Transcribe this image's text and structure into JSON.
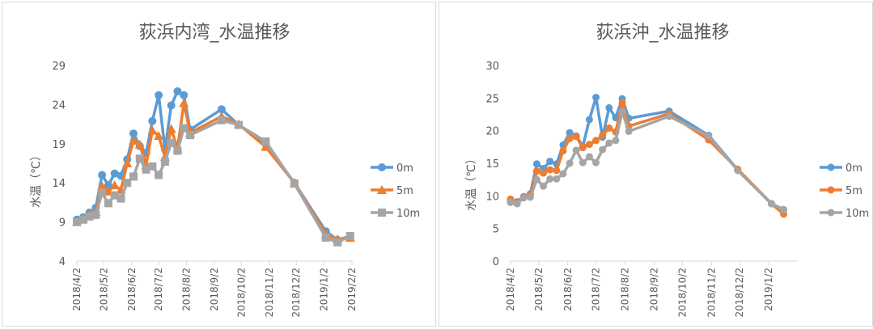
{
  "colors": {
    "s0m": "#5b9bd5",
    "s5m": "#ed7d31",
    "s10m": "#a5a5a5"
  },
  "chart_data": [
    {
      "type": "line",
      "title": "荻浜内湾_水温推移",
      "ylabel": "水温（℃）",
      "xlabel": "",
      "ylim": [
        4,
        29
      ],
      "yticks": [
        "4",
        "9",
        "14",
        "19",
        "24",
        "29"
      ],
      "xlim": [
        "2018-04-02",
        "2019-02-02"
      ],
      "xticks": [
        "2018/4/2",
        "2018/5/2",
        "2018/6/2",
        "2018/7/2",
        "2018/8/2",
        "2018/9/2",
        "2018/10/2",
        "2018/11/2",
        "2018/12/2",
        "2019/1/2",
        "2019/2/2"
      ],
      "legend": "right",
      "series": [
        {
          "name": "0m",
          "color_key": "s0m",
          "marker": "circle",
          "points": [
            [
              "2018-04-02",
              9.3
            ],
            [
              "2018-04-09",
              9.6
            ],
            [
              "2018-04-16",
              10.2
            ],
            [
              "2018-04-23",
              10.8
            ],
            [
              "2018-04-30",
              15.0
            ],
            [
              "2018-05-07",
              13.7
            ],
            [
              "2018-05-14",
              15.2
            ],
            [
              "2018-05-21",
              14.9
            ],
            [
              "2018-05-28",
              17.0
            ],
            [
              "2018-06-04",
              20.3
            ],
            [
              "2018-06-11",
              18.7
            ],
            [
              "2018-06-18",
              17.8
            ],
            [
              "2018-06-25",
              21.9
            ],
            [
              "2018-07-02",
              25.2
            ],
            [
              "2018-07-09",
              18.3
            ],
            [
              "2018-07-16",
              23.9
            ],
            [
              "2018-07-23",
              25.7
            ],
            [
              "2018-07-30",
              25.2
            ],
            [
              "2018-08-06",
              20.8
            ],
            [
              "2018-09-10",
              23.4
            ],
            [
              "2018-09-29",
              21.4
            ],
            [
              "2018-10-29",
              19.0
            ],
            [
              "2018-11-30",
              14.0
            ],
            [
              "2019-01-04",
              7.8
            ],
            [
              "2019-01-17",
              6.7
            ],
            [
              "2019-01-31",
              7.2
            ]
          ]
        },
        {
          "name": "5m",
          "color_key": "s5m",
          "marker": "triangle",
          "points": [
            [
              "2018-04-02",
              9.0
            ],
            [
              "2018-04-09",
              9.4
            ],
            [
              "2018-04-16",
              10.0
            ],
            [
              "2018-04-23",
              10.3
            ],
            [
              "2018-04-30",
              13.6
            ],
            [
              "2018-05-07",
              12.9
            ],
            [
              "2018-05-14",
              13.7
            ],
            [
              "2018-05-21",
              13.1
            ],
            [
              "2018-05-28",
              16.5
            ],
            [
              "2018-06-04",
              19.4
            ],
            [
              "2018-06-11",
              18.9
            ],
            [
              "2018-06-18",
              16.3
            ],
            [
              "2018-06-25",
              20.7
            ],
            [
              "2018-07-02",
              20.0
            ],
            [
              "2018-07-09",
              17.3
            ],
            [
              "2018-07-16",
              20.9
            ],
            [
              "2018-07-23",
              18.4
            ],
            [
              "2018-07-30",
              24.2
            ],
            [
              "2018-08-06",
              20.4
            ],
            [
              "2018-09-10",
              22.5
            ],
            [
              "2018-09-29",
              21.5
            ],
            [
              "2018-10-29",
              18.6
            ],
            [
              "2018-11-30",
              14.0
            ],
            [
              "2019-01-04",
              7.4
            ],
            [
              "2019-01-17",
              6.8
            ],
            [
              "2019-01-31",
              7.0
            ]
          ]
        },
        {
          "name": "10m",
          "color_key": "s10m",
          "marker": "square",
          "points": [
            [
              "2018-04-02",
              9.0
            ],
            [
              "2018-04-09",
              9.3
            ],
            [
              "2018-04-16",
              9.7
            ],
            [
              "2018-04-23",
              9.9
            ],
            [
              "2018-04-30",
              12.7
            ],
            [
              "2018-05-07",
              11.4
            ],
            [
              "2018-05-14",
              12.4
            ],
            [
              "2018-05-21",
              12.0
            ],
            [
              "2018-05-28",
              14.0
            ],
            [
              "2018-06-04",
              14.8
            ],
            [
              "2018-06-11",
              17.1
            ],
            [
              "2018-06-18",
              15.7
            ],
            [
              "2018-06-25",
              16.1
            ],
            [
              "2018-07-02",
              15.0
            ],
            [
              "2018-07-09",
              16.7
            ],
            [
              "2018-07-16",
              19.1
            ],
            [
              "2018-07-23",
              18.1
            ],
            [
              "2018-07-30",
              21.0
            ],
            [
              "2018-08-06",
              20.1
            ],
            [
              "2018-09-10",
              22.0
            ],
            [
              "2018-09-29",
              21.4
            ],
            [
              "2018-10-29",
              19.3
            ],
            [
              "2018-11-30",
              13.9
            ],
            [
              "2019-01-04",
              7.0
            ],
            [
              "2019-01-17",
              6.4
            ],
            [
              "2019-01-31",
              7.2
            ]
          ]
        }
      ]
    },
    {
      "type": "line",
      "title": "荻浜沖_水温推移",
      "ylabel": "水温（℃）",
      "xlabel": "",
      "ylim": [
        0,
        30
      ],
      "yticks": [
        "0",
        "5",
        "10",
        "15",
        "20",
        "25",
        "30"
      ],
      "xlim": [
        "2018-04-02",
        "2019-02-02"
      ],
      "xticks": [
        "2018/4/2",
        "2018/5/2",
        "2018/6/2",
        "2018/7/2",
        "2018/8/2",
        "2018/9/2",
        "2018/10/2",
        "2018/11/2",
        "2018/12/2",
        "2019/1/2"
      ],
      "legend": "right",
      "series": [
        {
          "name": "0m",
          "color_key": "s0m",
          "marker": "circle",
          "points": [
            [
              "2018-04-02",
              9.3
            ],
            [
              "2018-04-09",
              9.1
            ],
            [
              "2018-04-16",
              9.9
            ],
            [
              "2018-04-23",
              10.3
            ],
            [
              "2018-04-30",
              14.9
            ],
            [
              "2018-05-07",
              14.2
            ],
            [
              "2018-05-14",
              15.3
            ],
            [
              "2018-05-21",
              14.9
            ],
            [
              "2018-05-28",
              17.8
            ],
            [
              "2018-06-04",
              19.7
            ],
            [
              "2018-06-11",
              19.2
            ],
            [
              "2018-06-18",
              17.6
            ],
            [
              "2018-06-25",
              21.7
            ],
            [
              "2018-07-02",
              25.1
            ],
            [
              "2018-07-09",
              19.0
            ],
            [
              "2018-07-16",
              23.5
            ],
            [
              "2018-07-23",
              22.0
            ],
            [
              "2018-07-30",
              24.9
            ],
            [
              "2018-08-06",
              21.9
            ],
            [
              "2018-09-18",
              23.0
            ],
            [
              "2018-10-30",
              19.3
            ],
            [
              "2018-11-30",
              14.0
            ],
            [
              "2019-01-05",
              8.8
            ],
            [
              "2019-01-18",
              7.9
            ]
          ]
        },
        {
          "name": "5m",
          "color_key": "s5m",
          "marker": "circle",
          "points": [
            [
              "2018-04-02",
              9.5
            ],
            [
              "2018-04-09",
              8.9
            ],
            [
              "2018-04-16",
              9.8
            ],
            [
              "2018-04-23",
              10.1
            ],
            [
              "2018-04-30",
              13.8
            ],
            [
              "2018-05-07",
              13.5
            ],
            [
              "2018-05-14",
              14.0
            ],
            [
              "2018-05-21",
              13.9
            ],
            [
              "2018-05-28",
              16.9
            ],
            [
              "2018-06-04",
              18.8
            ],
            [
              "2018-06-11",
              19.1
            ],
            [
              "2018-06-18",
              17.4
            ],
            [
              "2018-06-25",
              17.9
            ],
            [
              "2018-07-02",
              18.5
            ],
            [
              "2018-07-09",
              19.3
            ],
            [
              "2018-07-16",
              20.4
            ],
            [
              "2018-07-23",
              19.8
            ],
            [
              "2018-07-30",
              24.3
            ],
            [
              "2018-08-06",
              20.7
            ],
            [
              "2018-09-18",
              22.6
            ],
            [
              "2018-10-30",
              18.6
            ],
            [
              "2018-11-30",
              14.1
            ],
            [
              "2019-01-05",
              8.8
            ],
            [
              "2019-01-18",
              7.2
            ]
          ]
        },
        {
          "name": "10m",
          "color_key": "s10m",
          "marker": "circle",
          "points": [
            [
              "2018-04-02",
              9.0
            ],
            [
              "2018-04-09",
              8.8
            ],
            [
              "2018-04-16",
              9.7
            ],
            [
              "2018-04-23",
              9.8
            ],
            [
              "2018-04-30",
              12.5
            ],
            [
              "2018-05-07",
              11.5
            ],
            [
              "2018-05-14",
              12.6
            ],
            [
              "2018-05-21",
              12.6
            ],
            [
              "2018-05-28",
              13.4
            ],
            [
              "2018-06-04",
              15.0
            ],
            [
              "2018-06-11",
              17.0
            ],
            [
              "2018-06-18",
              15.1
            ],
            [
              "2018-06-25",
              16.0
            ],
            [
              "2018-07-02",
              15.1
            ],
            [
              "2018-07-09",
              17.1
            ],
            [
              "2018-07-16",
              18.1
            ],
            [
              "2018-07-23",
              18.5
            ],
            [
              "2018-07-30",
              22.9
            ],
            [
              "2018-08-06",
              19.9
            ],
            [
              "2018-09-18",
              22.2
            ],
            [
              "2018-10-30",
              19.2
            ],
            [
              "2018-11-30",
              13.9
            ],
            [
              "2019-01-05",
              8.8
            ],
            [
              "2019-01-18",
              7.9
            ]
          ]
        }
      ]
    }
  ]
}
